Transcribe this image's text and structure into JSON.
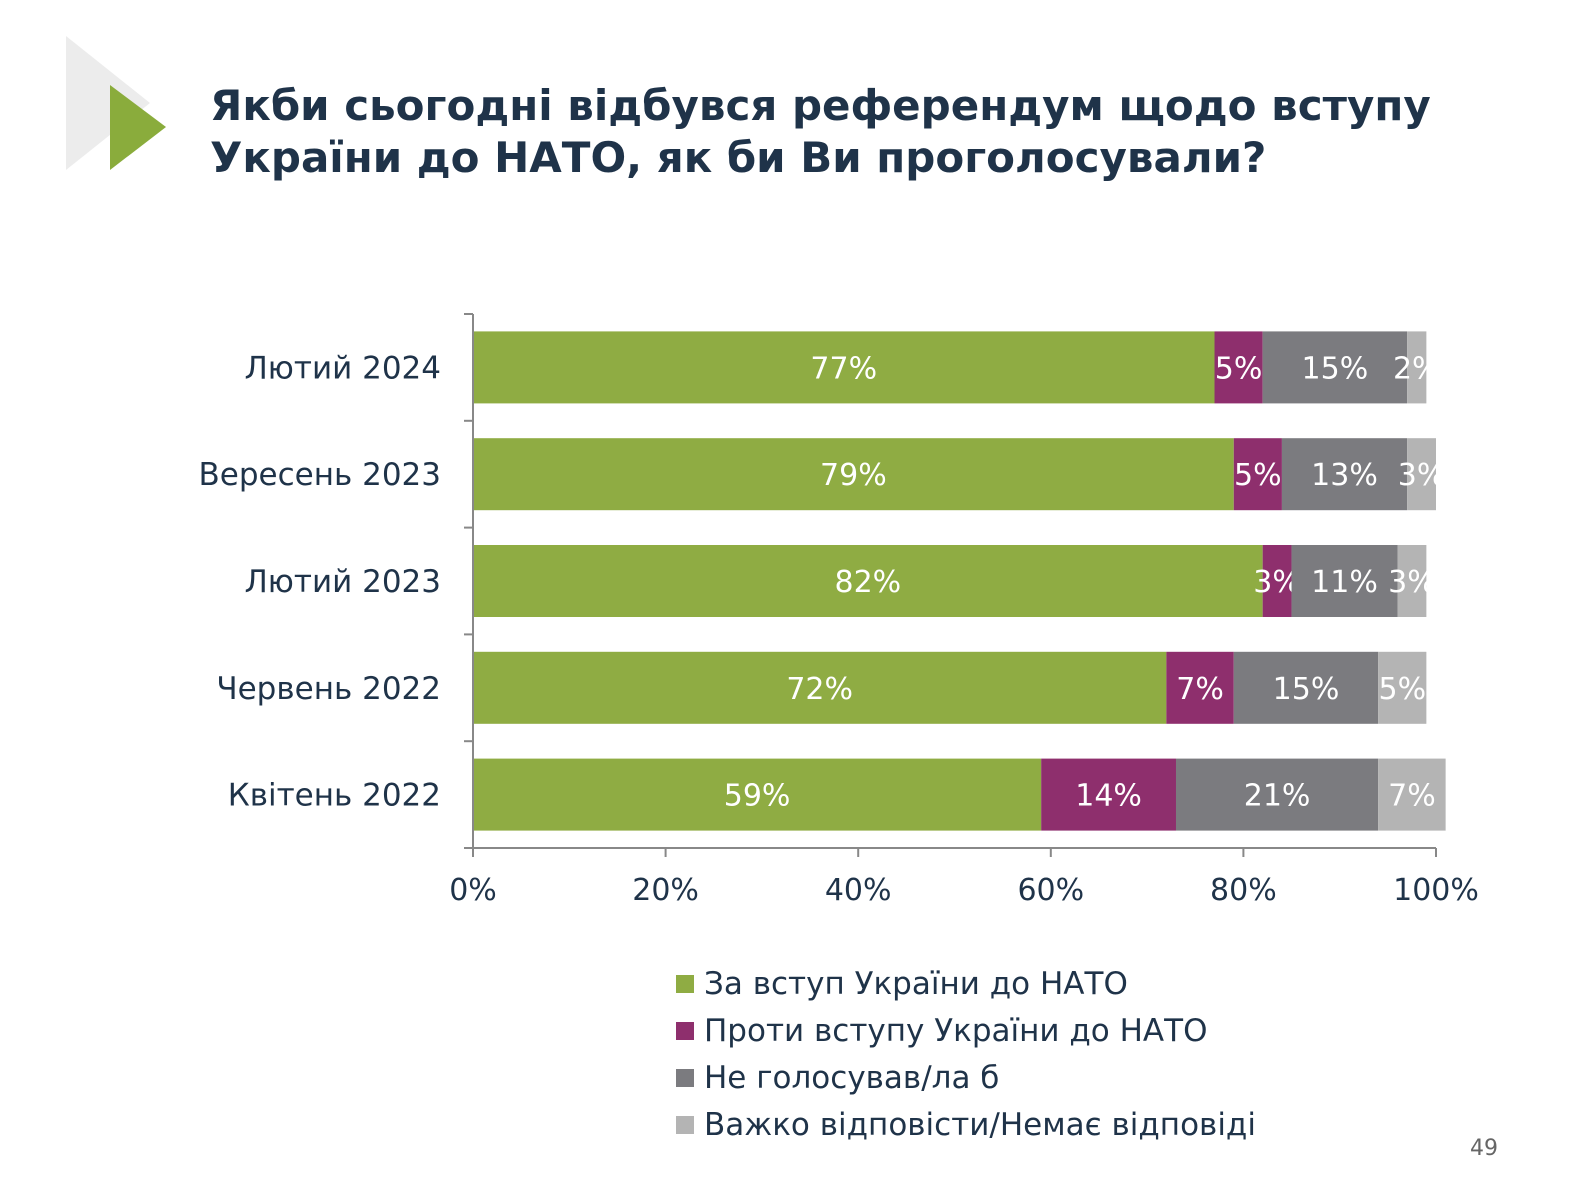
{
  "page": {
    "title_lines": [
      "Якби сьогодні відбувся референдум щодо вступу",
      "України до НАТО, як би Ви проголосували?"
    ],
    "page_number": "49",
    "colors": {
      "title": "#1f3349",
      "arrow": "#8aac3c",
      "arrow_shadow": "#ececec"
    }
  },
  "chart_data": {
    "type": "bar",
    "orientation": "horizontal",
    "stacked": true,
    "categories": [
      "Лютий 2024",
      "Вересень 2023",
      "Лютий 2023",
      "Червень 2022",
      "Квітень 2022"
    ],
    "series": [
      {
        "name": "За вступ України до НАТО",
        "color": "#8fac43",
        "values": [
          77,
          79,
          82,
          72,
          59
        ],
        "labels": [
          "77%",
          "79%",
          "82%",
          "72%",
          "59%"
        ]
      },
      {
        "name": "Проти вступу України до НАТО",
        "color": "#8e2f6d",
        "values": [
          5,
          5,
          3,
          7,
          14
        ],
        "labels": [
          "5%",
          "5%",
          "3%",
          "7%",
          "14%"
        ]
      },
      {
        "name": "Не голосував/ла б",
        "color": "#7b7b7f",
        "values": [
          15,
          13,
          11,
          15,
          21
        ],
        "labels": [
          "15%",
          "13%",
          "11%",
          "15%",
          "21%"
        ]
      },
      {
        "name": "Важко відповісти/Немає відповіді",
        "color": "#b4b4b4",
        "values": [
          2,
          3,
          3,
          5,
          7
        ],
        "labels": [
          "2%",
          "3%",
          "3%",
          "5%",
          "7%"
        ]
      }
    ],
    "xlim": [
      0,
      100
    ],
    "xticks": [
      "0%",
      "20%",
      "40%",
      "60%",
      "80%",
      "100%"
    ],
    "legend": "bottom"
  }
}
